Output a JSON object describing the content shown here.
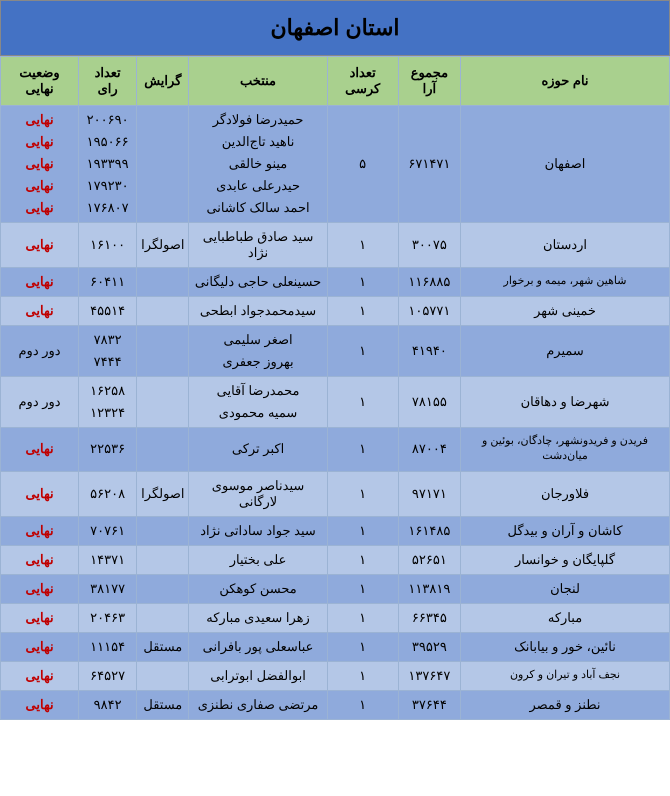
{
  "title": "استان اصفهان",
  "headers": [
    "نام حوزه",
    "مجموع آرا",
    "تعداد کرسی",
    "منتخب",
    "گرایش",
    "تعداد رای",
    "وضعیت نهایی"
  ],
  "status": {
    "final": "نهایی",
    "round2": "دور دوم"
  },
  "colors": {
    "title_bg": "#4472c4",
    "header_bg": "#a9d08e",
    "row_even": "#8faadc",
    "row_odd": "#b4c7e7",
    "final_text": "#c00000"
  },
  "rows": [
    {
      "region": "اصفهان",
      "votes": "۶۷۱۴۷۱",
      "seats": "۵",
      "tone": "even",
      "elected": [
        "حمیدرضا فولادگر",
        "ناهید تاج‌الدین",
        "مینو خالقی",
        "حیدرعلی عابدی",
        "احمد سالک کاشانی"
      ],
      "lean": "",
      "counts": [
        "۲۰۰۶۹۰",
        "۱۹۵۰۶۶",
        "۱۹۳۳۹۹",
        "۱۷۹۲۳۰",
        "۱۷۶۸۰۷"
      ],
      "statuses": [
        "نهایی",
        "نهایی",
        "نهایی",
        "نهایی",
        "نهایی"
      ],
      "status_type": "final"
    },
    {
      "region": "اردستان",
      "votes": "۳۰۰۷۵",
      "seats": "۱",
      "tone": "odd",
      "elected": [
        "سید صادق طباطبایی نژاد"
      ],
      "lean": "اصولگرا",
      "counts": [
        "۱۶۱۰۰"
      ],
      "statuses": [
        "نهایی"
      ],
      "status_type": "final"
    },
    {
      "region": "شاهین شهر، میمه و برخوار",
      "votes": "۱۱۶۸۸۵",
      "seats": "۱",
      "tone": "even",
      "elected": [
        "حسینعلی حاجی دلیگانی"
      ],
      "lean": "",
      "counts": [
        "۶۰۴۱۱"
      ],
      "statuses": [
        "نهایی"
      ],
      "status_type": "final",
      "region_small": true
    },
    {
      "region": "خمینی شهر",
      "votes": "۱۰۵۷۷۱",
      "seats": "۱",
      "tone": "odd",
      "elected": [
        "سیدمحمدجواد ابطحی"
      ],
      "lean": "",
      "counts": [
        "۴۵۵۱۴"
      ],
      "statuses": [
        "نهایی"
      ],
      "status_type": "final"
    },
    {
      "region": "سمیرم",
      "votes": "۴۱۹۴۰",
      "seats": "۱",
      "tone": "even",
      "elected": [
        "اصغر سلیمی",
        "بهروز جعفری"
      ],
      "lean": "",
      "counts": [
        "۷۸۳۲",
        "۷۴۴۴"
      ],
      "statuses": [
        "دور دوم"
      ],
      "status_type": "round2"
    },
    {
      "region": "شهرضا و دهاقان",
      "votes": "۷۸۱۵۵",
      "seats": "۱",
      "tone": "odd",
      "elected": [
        "محمدرضا آقایی",
        "سمیه محمودی"
      ],
      "lean": "",
      "counts": [
        "۱۶۲۵۸",
        "۱۲۳۲۴"
      ],
      "statuses": [
        "دور دوم"
      ],
      "status_type": "round2"
    },
    {
      "region": "فریدن و فریدونشهر، چادگان، بوئین و میان‌دشت",
      "votes": "۸۷۰۰۴",
      "seats": "۱",
      "tone": "even",
      "elected": [
        "اکبر ترکی"
      ],
      "lean": "",
      "counts": [
        "۲۲۵۳۶"
      ],
      "statuses": [
        "نهایی"
      ],
      "status_type": "final",
      "region_small": true
    },
    {
      "region": "فلاورجان",
      "votes": "۹۷۱۷۱",
      "seats": "۱",
      "tone": "odd",
      "elected": [
        "سیدناصر موسوی لارگانی"
      ],
      "lean": "اصولگرا",
      "counts": [
        "۵۶۲۰۸"
      ],
      "statuses": [
        "نهایی"
      ],
      "status_type": "final"
    },
    {
      "region": "کاشان و آران و بیدگل",
      "votes": "۱۶۱۴۸۵",
      "seats": "۱",
      "tone": "even",
      "elected": [
        "سید جواد ساداتی نژاد"
      ],
      "lean": "",
      "counts": [
        "۷۰۷۶۱"
      ],
      "statuses": [
        "نهایی"
      ],
      "status_type": "final"
    },
    {
      "region": "گلپایگان و خوانسار",
      "votes": "۵۲۶۵۱",
      "seats": "۱",
      "tone": "odd",
      "elected": [
        "علی بختیار"
      ],
      "lean": "",
      "counts": [
        "۱۴۳۷۱"
      ],
      "statuses": [
        "نهایی"
      ],
      "status_type": "final"
    },
    {
      "region": "لنجان",
      "votes": "۱۱۳۸۱۹",
      "seats": "۱",
      "tone": "even",
      "elected": [
        "محسن کوهکن"
      ],
      "lean": "",
      "counts": [
        "۳۸۱۷۷"
      ],
      "statuses": [
        "نهایی"
      ],
      "status_type": "final"
    },
    {
      "region": "مبارکه",
      "votes": "۶۶۳۴۵",
      "seats": "۱",
      "tone": "odd",
      "elected": [
        "زهرا سعیدی مبارکه"
      ],
      "lean": "",
      "counts": [
        "۲۰۴۶۳"
      ],
      "statuses": [
        "نهایی"
      ],
      "status_type": "final"
    },
    {
      "region": "نائین، خور و بیابانک",
      "votes": "۳۹۵۲۹",
      "seats": "۱",
      "tone": "even",
      "elected": [
        "عباسعلی پور بافرانی"
      ],
      "lean": "مستقل",
      "counts": [
        "۱۱۱۵۴"
      ],
      "statuses": [
        "نهایی"
      ],
      "status_type": "final"
    },
    {
      "region": "نجف آباد و تیران و کرون",
      "votes": "۱۳۷۶۴۷",
      "seats": "۱",
      "tone": "odd",
      "elected": [
        "ابوالفضل ابوترابی"
      ],
      "lean": "",
      "counts": [
        "۶۴۵۲۷"
      ],
      "statuses": [
        "نهایی"
      ],
      "status_type": "final",
      "region_small": true
    },
    {
      "region": "نطنز و قمصر",
      "votes": "۳۷۶۴۴",
      "seats": "۱",
      "tone": "even",
      "elected": [
        "مرتضی صفاری نطنزی"
      ],
      "lean": "مستقل",
      "counts": [
        "۹۸۴۲"
      ],
      "statuses": [
        "نهایی"
      ],
      "status_type": "final"
    }
  ]
}
